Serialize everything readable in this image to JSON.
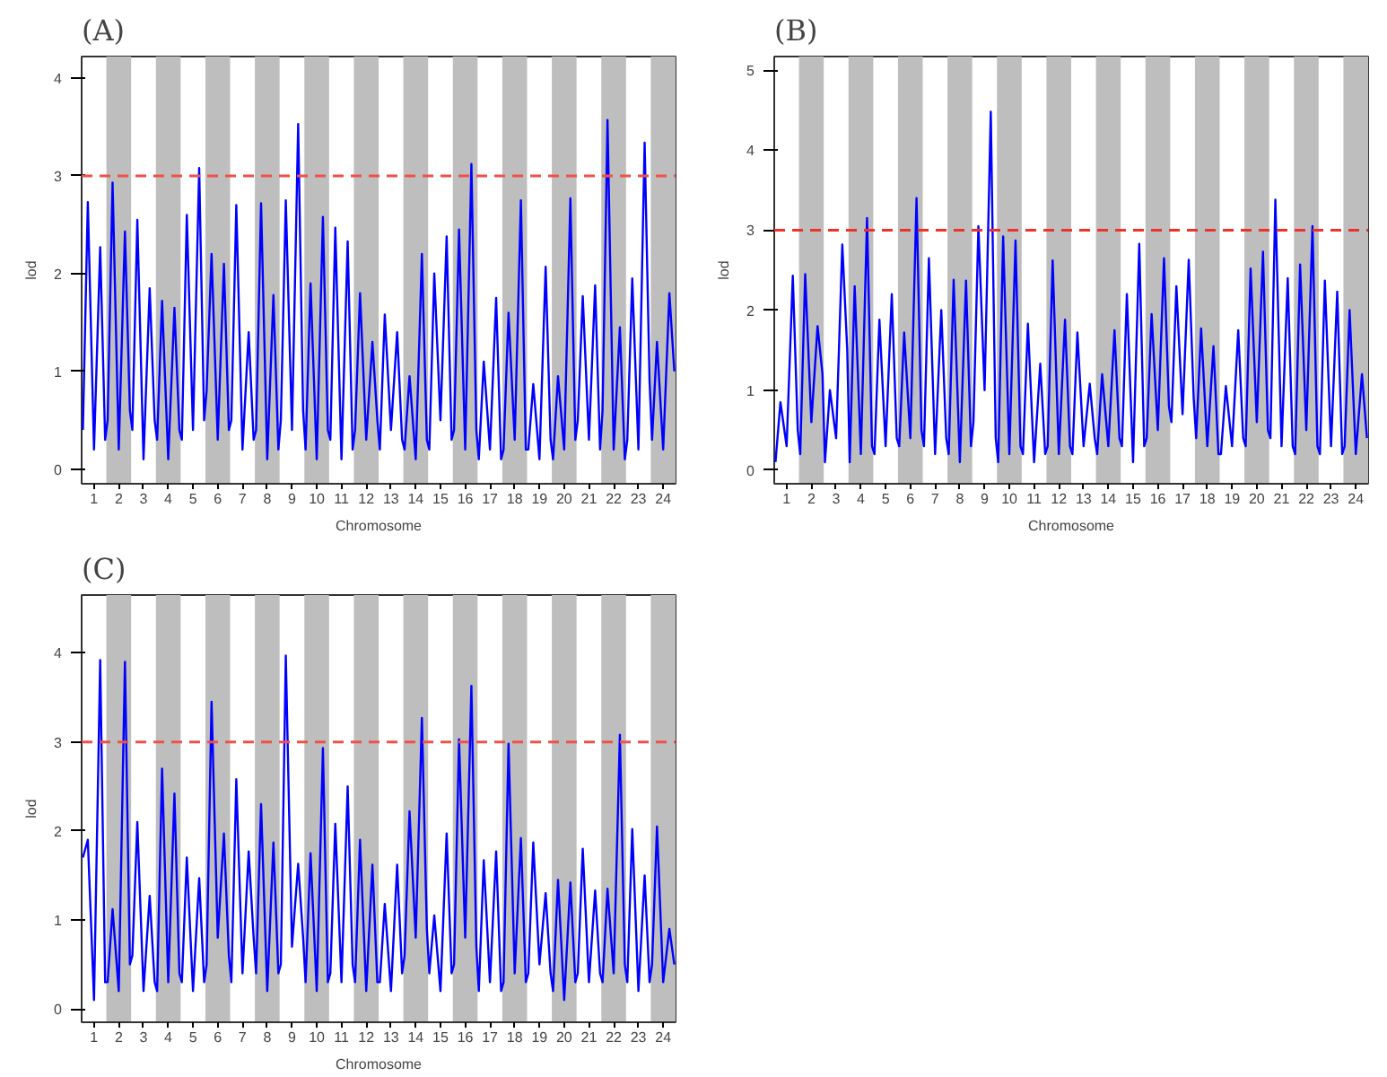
{
  "chart_data": [
    {
      "type": "line",
      "title": "(A)",
      "xlabel": "Chromosome",
      "ylabel": "lod",
      "xlim": [
        0.5,
        24.5
      ],
      "ylim": [
        -0.15,
        4.22
      ],
      "yticks": [
        0,
        1,
        2,
        3,
        4
      ],
      "grid": false,
      "line_style": "solid",
      "marker": "none",
      "xticks": [
        1,
        2,
        3,
        4,
        5,
        6,
        7,
        8,
        9,
        10,
        11,
        12,
        13,
        14,
        15,
        16,
        17,
        18,
        19,
        20,
        21,
        22,
        23,
        24
      ],
      "bands": [
        {
          "axis": "x",
          "from": 1.5,
          "to": 2.5,
          "color": "#bebebe"
        },
        {
          "axis": "x",
          "from": 3.5,
          "to": 4.5,
          "color": "#bebebe"
        },
        {
          "axis": "x",
          "from": 5.5,
          "to": 6.5,
          "color": "#bebebe"
        },
        {
          "axis": "x",
          "from": 7.5,
          "to": 8.5,
          "color": "#bebebe"
        },
        {
          "axis": "x",
          "from": 9.5,
          "to": 10.5,
          "color": "#bebebe"
        },
        {
          "axis": "x",
          "from": 11.5,
          "to": 12.5,
          "color": "#bebebe"
        },
        {
          "axis": "x",
          "from": 13.5,
          "to": 14.5,
          "color": "#bebebe"
        },
        {
          "axis": "x",
          "from": 15.5,
          "to": 16.5,
          "color": "#bebebe"
        },
        {
          "axis": "x",
          "from": 17.5,
          "to": 18.5,
          "color": "#bebebe"
        },
        {
          "axis": "x",
          "from": 19.5,
          "to": 20.5,
          "color": "#bebebe"
        },
        {
          "axis": "x",
          "from": 21.5,
          "to": 22.5,
          "color": "#bebebe"
        },
        {
          "axis": "x",
          "from": 23.5,
          "to": 24.5,
          "color": "#bebebe"
        }
      ],
      "ref_lines": [
        {
          "axis": "y",
          "value": 3,
          "color": "#f0504a",
          "line_style": "dashed"
        }
      ],
      "x": [
        0.55,
        0.75,
        1,
        1.25,
        1.45,
        1.55,
        1.75,
        2,
        2.25,
        2.45,
        2.55,
        2.75,
        3,
        3.25,
        3.45,
        3.55,
        3.75,
        4,
        4.25,
        4.45,
        4.55,
        4.75,
        5,
        5.25,
        5.45,
        5.55,
        5.75,
        6,
        6.25,
        6.45,
        6.55,
        6.75,
        7,
        7.25,
        7.45,
        7.55,
        7.75,
        8,
        8.25,
        8.45,
        8.55,
        8.75,
        9,
        9.25,
        9.45,
        9.55,
        9.75,
        10,
        10.25,
        10.45,
        10.55,
        10.75,
        11,
        11.25,
        11.45,
        11.55,
        11.75,
        12,
        12.25,
        12.45,
        12.55,
        12.75,
        13,
        13.25,
        13.45,
        13.55,
        13.75,
        14,
        14.25,
        14.45,
        14.55,
        14.75,
        15,
        15.25,
        15.45,
        15.55,
        15.75,
        16,
        16.25,
        16.45,
        16.55,
        16.75,
        17,
        17.25,
        17.45,
        17.55,
        17.75,
        18,
        18.25,
        18.45,
        18.55,
        18.75,
        19,
        19.25,
        19.45,
        19.55,
        19.75,
        20,
        20.25,
        20.45,
        20.55,
        20.75,
        21,
        21.25,
        21.45,
        21.55,
        21.75,
        22,
        22.25,
        22.45,
        22.55,
        22.75,
        23,
        23.25,
        23.45,
        23.55,
        23.75,
        24,
        24.25,
        24.45
      ],
      "series": [
        {
          "color": "#0000ff",
          "values": [
            0.4,
            2.73,
            0.2,
            2.27,
            0.3,
            0.5,
            2.93,
            0.2,
            2.43,
            0.6,
            0.4,
            2.55,
            0.1,
            1.85,
            0.5,
            0.3,
            1.72,
            0.1,
            1.65,
            0.4,
            0.3,
            2.6,
            0.4,
            3.08,
            0.5,
            0.8,
            2.2,
            0.3,
            2.1,
            0.4,
            0.5,
            2.7,
            0.2,
            1.4,
            0.3,
            0.4,
            2.72,
            0.1,
            1.78,
            0.2,
            0.5,
            2.75,
            0.4,
            3.53,
            0.6,
            0.2,
            1.9,
            0.1,
            2.58,
            0.4,
            0.3,
            2.47,
            0.1,
            2.33,
            0.2,
            0.4,
            1.8,
            0.3,
            1.3,
            0.5,
            0.2,
            1.58,
            0.4,
            1.4,
            0.3,
            0.2,
            0.95,
            0.1,
            2.2,
            0.3,
            0.2,
            2.0,
            0.5,
            2.38,
            0.3,
            0.4,
            2.45,
            0.2,
            3.12,
            0.4,
            0.1,
            1.1,
            0.2,
            1.75,
            0.1,
            0.2,
            1.6,
            0.3,
            2.75,
            0.2,
            0.2,
            0.87,
            0.1,
            2.07,
            0.3,
            0.1,
            0.95,
            0.2,
            2.77,
            0.3,
            0.5,
            1.77,
            0.3,
            1.88,
            0.2,
            0.6,
            3.57,
            0.2,
            1.45,
            0.1,
            0.3,
            1.95,
            0.2,
            3.34,
            0.9,
            0.3,
            1.3,
            0.2,
            1.8,
            1.0
          ]
        }
      ]
    },
    {
      "type": "line",
      "title": "(B)",
      "xlabel": "Chromosome",
      "ylabel": "lod",
      "xlim": [
        0.5,
        24.5
      ],
      "ylim": [
        -0.17,
        5.17
      ],
      "yticks": [
        0,
        1,
        2,
        3,
        4,
        5
      ],
      "grid": false,
      "line_style": "solid",
      "marker": "none",
      "xticks": [
        1,
        2,
        3,
        4,
        5,
        6,
        7,
        8,
        9,
        10,
        11,
        12,
        13,
        14,
        15,
        16,
        17,
        18,
        19,
        20,
        21,
        22,
        23,
        24
      ],
      "bands": [
        {
          "axis": "x",
          "from": 1.5,
          "to": 2.5,
          "color": "#bebebe"
        },
        {
          "axis": "x",
          "from": 3.5,
          "to": 4.5,
          "color": "#bebebe"
        },
        {
          "axis": "x",
          "from": 5.5,
          "to": 6.5,
          "color": "#bebebe"
        },
        {
          "axis": "x",
          "from": 7.5,
          "to": 8.5,
          "color": "#bebebe"
        },
        {
          "axis": "x",
          "from": 9.5,
          "to": 10.5,
          "color": "#bebebe"
        },
        {
          "axis": "x",
          "from": 11.5,
          "to": 12.5,
          "color": "#bebebe"
        },
        {
          "axis": "x",
          "from": 13.5,
          "to": 14.5,
          "color": "#bebebe"
        },
        {
          "axis": "x",
          "from": 15.5,
          "to": 16.5,
          "color": "#bebebe"
        },
        {
          "axis": "x",
          "from": 17.5,
          "to": 18.5,
          "color": "#bebebe"
        },
        {
          "axis": "x",
          "from": 19.5,
          "to": 20.5,
          "color": "#bebebe"
        },
        {
          "axis": "x",
          "from": 21.5,
          "to": 22.5,
          "color": "#bebebe"
        },
        {
          "axis": "x",
          "from": 23.5,
          "to": 24.5,
          "color": "#bebebe"
        }
      ],
      "ref_lines": [
        {
          "axis": "y",
          "value": 3,
          "color": "#f0302a",
          "line_style": "dashed"
        }
      ],
      "x": [
        0.55,
        0.75,
        1,
        1.25,
        1.45,
        1.55,
        1.75,
        2,
        2.25,
        2.45,
        2.55,
        2.75,
        3,
        3.25,
        3.45,
        3.55,
        3.75,
        4,
        4.25,
        4.45,
        4.55,
        4.75,
        5,
        5.25,
        5.45,
        5.55,
        5.75,
        6,
        6.25,
        6.45,
        6.55,
        6.75,
        7,
        7.25,
        7.45,
        7.55,
        7.75,
        8,
        8.25,
        8.45,
        8.55,
        8.75,
        9,
        9.25,
        9.45,
        9.55,
        9.75,
        10,
        10.25,
        10.45,
        10.55,
        10.75,
        11,
        11.25,
        11.45,
        11.55,
        11.75,
        12,
        12.25,
        12.45,
        12.55,
        12.75,
        13,
        13.25,
        13.45,
        13.55,
        13.75,
        14,
        14.25,
        14.45,
        14.55,
        14.75,
        15,
        15.25,
        15.45,
        15.55,
        15.75,
        16,
        16.25,
        16.45,
        16.55,
        16.75,
        17,
        17.25,
        17.45,
        17.55,
        17.75,
        18,
        18.25,
        18.45,
        18.55,
        18.75,
        19,
        19.25,
        19.45,
        19.55,
        19.75,
        20,
        20.25,
        20.45,
        20.55,
        20.75,
        21,
        21.25,
        21.45,
        21.55,
        21.75,
        22,
        22.25,
        22.45,
        22.55,
        22.75,
        23,
        23.25,
        23.45,
        23.55,
        23.75,
        24,
        24.25,
        24.45
      ],
      "series": [
        {
          "color": "#0000ff",
          "values": [
            0.1,
            0.85,
            0.3,
            2.43,
            0.5,
            0.2,
            2.45,
            0.6,
            1.8,
            1.2,
            0.1,
            1.0,
            0.4,
            2.82,
            1.5,
            0.1,
            2.3,
            0.2,
            3.15,
            0.3,
            0.2,
            1.88,
            0.3,
            2.2,
            0.4,
            0.3,
            1.72,
            0.4,
            3.4,
            0.5,
            0.3,
            2.65,
            0.2,
            2.0,
            0.4,
            0.2,
            2.38,
            0.1,
            2.37,
            0.3,
            0.6,
            3.05,
            1.0,
            4.48,
            0.4,
            0.1,
            2.92,
            0.2,
            2.87,
            0.3,
            0.2,
            1.83,
            0.1,
            1.33,
            0.2,
            0.3,
            2.62,
            0.2,
            1.88,
            0.3,
            0.2,
            1.72,
            0.3,
            1.08,
            0.4,
            0.2,
            1.2,
            0.3,
            1.75,
            0.4,
            0.3,
            2.2,
            0.1,
            2.83,
            0.3,
            0.4,
            1.95,
            0.5,
            2.65,
            0.8,
            0.6,
            2.3,
            0.7,
            2.63,
            0.9,
            0.4,
            1.77,
            0.3,
            1.55,
            0.2,
            0.2,
            1.05,
            0.3,
            1.75,
            0.4,
            0.3,
            2.52,
            0.6,
            2.73,
            0.5,
            0.4,
            3.38,
            0.3,
            2.4,
            0.3,
            0.2,
            2.57,
            0.5,
            3.05,
            0.3,
            0.2,
            2.37,
            0.3,
            2.23,
            0.2,
            0.3,
            2.0,
            0.2,
            1.2,
            0.4
          ]
        }
      ]
    },
    {
      "type": "line",
      "title": "(C)",
      "xlabel": "Chromosome",
      "ylabel": "lod",
      "xlim": [
        0.5,
        24.5
      ],
      "ylim": [
        -0.15,
        4.65
      ],
      "yticks": [
        0,
        1,
        2,
        3,
        4
      ],
      "grid": false,
      "line_style": "solid",
      "marker": "none",
      "xticks": [
        1,
        2,
        3,
        4,
        5,
        6,
        7,
        8,
        9,
        10,
        11,
        12,
        13,
        14,
        15,
        16,
        17,
        18,
        19,
        20,
        21,
        22,
        23,
        24
      ],
      "bands": [
        {
          "axis": "x",
          "from": 1.5,
          "to": 2.5,
          "color": "#bebebe"
        },
        {
          "axis": "x",
          "from": 3.5,
          "to": 4.5,
          "color": "#bebebe"
        },
        {
          "axis": "x",
          "from": 5.5,
          "to": 6.5,
          "color": "#bebebe"
        },
        {
          "axis": "x",
          "from": 7.5,
          "to": 8.5,
          "color": "#bebebe"
        },
        {
          "axis": "x",
          "from": 9.5,
          "to": 10.5,
          "color": "#bebebe"
        },
        {
          "axis": "x",
          "from": 11.5,
          "to": 12.5,
          "color": "#bebebe"
        },
        {
          "axis": "x",
          "from": 13.5,
          "to": 14.5,
          "color": "#bebebe"
        },
        {
          "axis": "x",
          "from": 15.5,
          "to": 16.5,
          "color": "#bebebe"
        },
        {
          "axis": "x",
          "from": 17.5,
          "to": 18.5,
          "color": "#bebebe"
        },
        {
          "axis": "x",
          "from": 19.5,
          "to": 20.5,
          "color": "#bebebe"
        },
        {
          "axis": "x",
          "from": 21.5,
          "to": 22.5,
          "color": "#bebebe"
        },
        {
          "axis": "x",
          "from": 23.5,
          "to": 24.5,
          "color": "#bebebe"
        }
      ],
      "ref_lines": [
        {
          "axis": "y",
          "value": 3,
          "color": "#f0504a",
          "line_style": "dashed"
        }
      ],
      "x": [
        0.55,
        0.75,
        1,
        1.25,
        1.45,
        1.55,
        1.75,
        2,
        2.25,
        2.45,
        2.55,
        2.75,
        3,
        3.25,
        3.45,
        3.55,
        3.75,
        4,
        4.25,
        4.45,
        4.55,
        4.75,
        5,
        5.25,
        5.45,
        5.55,
        5.75,
        6,
        6.25,
        6.45,
        6.55,
        6.75,
        7,
        7.25,
        7.45,
        7.55,
        7.75,
        8,
        8.25,
        8.45,
        8.55,
        8.75,
        9,
        9.25,
        9.45,
        9.55,
        9.75,
        10,
        10.25,
        10.45,
        10.55,
        10.75,
        11,
        11.25,
        11.45,
        11.55,
        11.75,
        12,
        12.25,
        12.45,
        12.55,
        12.75,
        13,
        13.25,
        13.45,
        13.55,
        13.75,
        14,
        14.25,
        14.45,
        14.55,
        14.75,
        15,
        15.25,
        15.45,
        15.55,
        15.75,
        16,
        16.25,
        16.45,
        16.55,
        16.75,
        17,
        17.25,
        17.45,
        17.55,
        17.75,
        18,
        18.25,
        18.45,
        18.55,
        18.75,
        19,
        19.25,
        19.45,
        19.55,
        19.75,
        20,
        20.25,
        20.45,
        20.55,
        20.75,
        21,
        21.25,
        21.45,
        21.55,
        21.75,
        22,
        22.25,
        22.45,
        22.55,
        22.75,
        23,
        23.25,
        23.45,
        23.55,
        23.75,
        24,
        24.25,
        24.45
      ],
      "series": [
        {
          "color": "#0000ff",
          "values": [
            1.7,
            1.9,
            0.1,
            3.92,
            0.3,
            0.3,
            1.12,
            0.2,
            3.9,
            0.5,
            0.6,
            2.1,
            0.2,
            1.27,
            0.3,
            0.2,
            2.7,
            0.3,
            2.42,
            0.4,
            0.3,
            1.7,
            0.2,
            1.47,
            0.3,
            0.5,
            3.45,
            0.8,
            1.97,
            0.6,
            0.3,
            2.58,
            0.4,
            1.77,
            0.8,
            0.4,
            2.3,
            0.2,
            1.87,
            0.4,
            0.5,
            3.97,
            0.7,
            1.63,
            0.8,
            0.3,
            1.75,
            0.2,
            2.93,
            0.3,
            0.4,
            2.08,
            0.3,
            2.5,
            0.5,
            0.3,
            1.9,
            0.2,
            1.62,
            0.3,
            0.3,
            1.18,
            0.2,
            1.62,
            0.4,
            0.6,
            2.22,
            0.8,
            3.27,
            0.9,
            0.4,
            1.05,
            0.2,
            1.97,
            0.4,
            0.5,
            3.03,
            0.8,
            3.63,
            0.7,
            0.2,
            1.67,
            0.3,
            1.77,
            0.2,
            0.3,
            2.98,
            0.4,
            1.92,
            0.3,
            0.4,
            1.87,
            0.5,
            1.3,
            0.4,
            0.2,
            1.45,
            0.1,
            1.42,
            0.3,
            0.4,
            1.8,
            0.3,
            1.33,
            0.4,
            0.3,
            1.35,
            0.4,
            3.08,
            0.5,
            0.3,
            2.02,
            0.2,
            1.5,
            0.3,
            0.5,
            2.05,
            0.3,
            0.9,
            0.5
          ]
        }
      ]
    }
  ]
}
